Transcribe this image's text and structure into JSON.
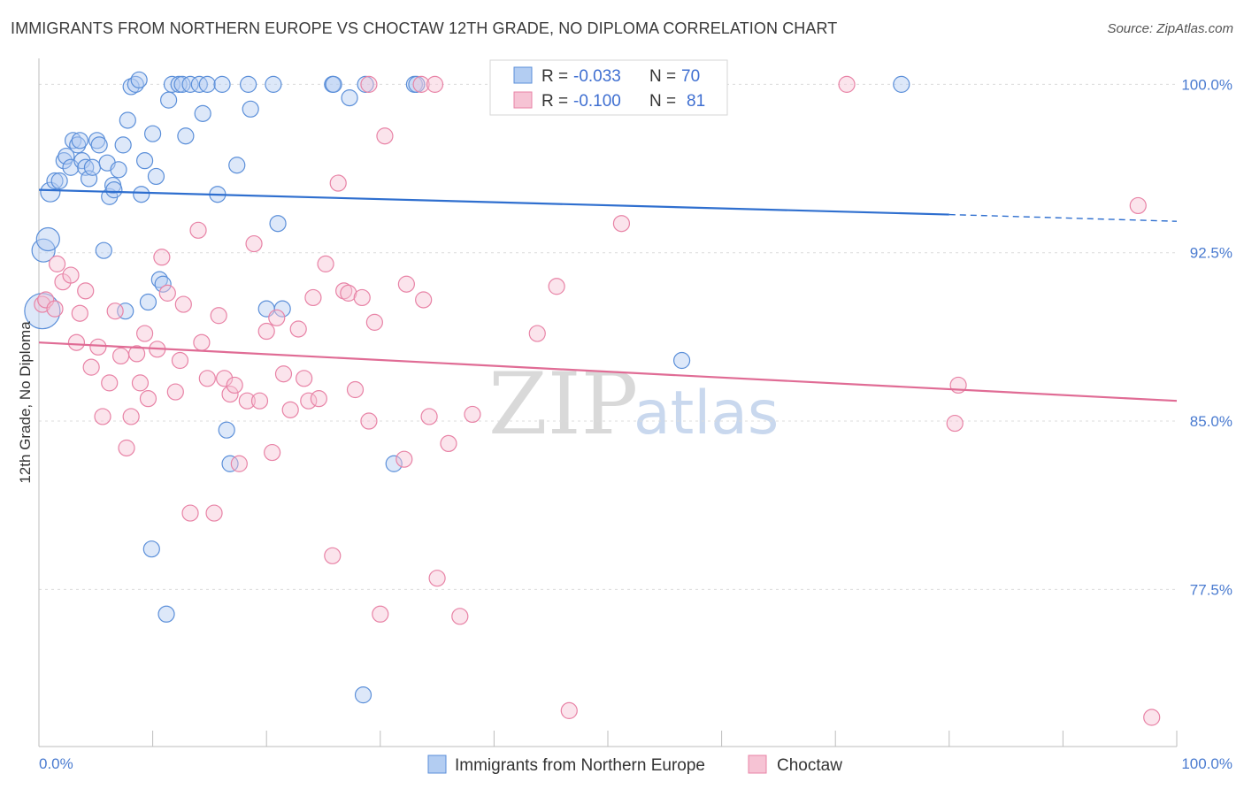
{
  "header": {
    "title": "IMMIGRANTS FROM NORTHERN EUROPE VS CHOCTAW 12TH GRADE, NO DIPLOMA CORRELATION CHART",
    "source": "Source: ZipAtlas.com"
  },
  "watermark": {
    "zip": "ZIP",
    "atlas": "atlas"
  },
  "colors": {
    "blue": "#5b8fd9",
    "blue_fill": "#b3cdf2",
    "blue_line": "#2f6fcf",
    "pink": "#e883a6",
    "pink_fill": "#f6c3d4",
    "pink_line": "#e06c95",
    "tick_text": "#4a7bd0"
  },
  "stats_box": {
    "rows": [
      {
        "r_label": "R =",
        "r_value": "-0.033",
        "n_label": "N =",
        "n_value": "70"
      },
      {
        "r_label": "R =",
        "r_value": "-0.100",
        "n_label": "N =",
        "n_value": "81"
      }
    ]
  },
  "chart_data": {
    "type": "scatter",
    "title": "IMMIGRANTS FROM NORTHERN EUROPE VS CHOCTAW 12TH GRADE, NO DIPLOMA CORRELATION CHART",
    "xlabel": "",
    "ylabel": "12th Grade, No Diploma",
    "xlim": [
      0,
      100
    ],
    "ylim": [
      70.5,
      101
    ],
    "x_ticks": [
      0,
      10,
      20,
      30,
      40,
      50,
      60,
      70,
      80,
      90,
      100
    ],
    "x_tick_labels": [
      {
        "value": 0,
        "label": "0.0%"
      },
      {
        "value": 100,
        "label": "100.0%"
      }
    ],
    "y_ticks": [
      {
        "value": 100,
        "label": "100.0%"
      },
      {
        "value": 92.5,
        "label": "92.5%"
      },
      {
        "value": 85,
        "label": "85.0%"
      },
      {
        "value": 77.5,
        "label": "77.5%"
      }
    ],
    "grid": true,
    "legend_position": "bottom-center",
    "series": [
      {
        "name": "Immigrants from Northern Europe",
        "color": "#5b8fd9",
        "trend": {
          "x": [
            0,
            80
          ],
          "y": [
            95.3,
            94.2
          ],
          "dash_to": [
            100,
            93.9
          ]
        },
        "points": [
          [
            0.3,
            89.9
          ],
          [
            0.4,
            92.6
          ],
          [
            0.8,
            93.1
          ],
          [
            1.0,
            95.2
          ],
          [
            1.4,
            95.7
          ],
          [
            1.8,
            95.7
          ],
          [
            2.2,
            96.6
          ],
          [
            2.4,
            96.8
          ],
          [
            2.8,
            96.3
          ],
          [
            3.0,
            97.5
          ],
          [
            3.4,
            97.3
          ],
          [
            3.6,
            97.5
          ],
          [
            3.8,
            96.6
          ],
          [
            4.1,
            96.3
          ],
          [
            4.4,
            95.8
          ],
          [
            4.7,
            96.3
          ],
          [
            5.1,
            97.5
          ],
          [
            5.3,
            97.3
          ],
          [
            5.7,
            92.6
          ],
          [
            6.0,
            96.5
          ],
          [
            6.2,
            95.0
          ],
          [
            6.5,
            95.5
          ],
          [
            6.6,
            95.3
          ],
          [
            7.0,
            96.2
          ],
          [
            7.4,
            97.3
          ],
          [
            7.6,
            89.9
          ],
          [
            7.8,
            98.4
          ],
          [
            8.1,
            99.9
          ],
          [
            8.5,
            100.0
          ],
          [
            8.8,
            100.2
          ],
          [
            9.0,
            95.1
          ],
          [
            9.3,
            96.6
          ],
          [
            9.6,
            90.3
          ],
          [
            9.9,
            79.3
          ],
          [
            10.0,
            97.8
          ],
          [
            10.3,
            95.9
          ],
          [
            10.6,
            91.3
          ],
          [
            10.9,
            91.1
          ],
          [
            11.2,
            76.4
          ],
          [
            11.4,
            99.3
          ],
          [
            11.7,
            100.0
          ],
          [
            12.3,
            100.0
          ],
          [
            12.6,
            100.0
          ],
          [
            12.9,
            97.7
          ],
          [
            13.3,
            100.0
          ],
          [
            14.1,
            100.0
          ],
          [
            14.4,
            98.7
          ],
          [
            14.8,
            100.0
          ],
          [
            15.7,
            95.1
          ],
          [
            16.1,
            100.0
          ],
          [
            16.5,
            84.6
          ],
          [
            16.8,
            83.1
          ],
          [
            17.4,
            96.4
          ],
          [
            18.4,
            100.0
          ],
          [
            18.6,
            98.9
          ],
          [
            20.6,
            100.0
          ],
          [
            20.0,
            90.0
          ],
          [
            21.0,
            93.8
          ],
          [
            21.4,
            90.0
          ],
          [
            25.8,
            100.0
          ],
          [
            25.9,
            100.0
          ],
          [
            27.3,
            99.4
          ],
          [
            28.5,
            72.8
          ],
          [
            28.7,
            100.0
          ],
          [
            31.2,
            83.1
          ],
          [
            33.0,
            100.0
          ],
          [
            33.2,
            100.0
          ],
          [
            56.3,
            100.0
          ],
          [
            56.5,
            87.7
          ],
          [
            75.8,
            100.0
          ]
        ]
      },
      {
        "name": "Choctaw",
        "color": "#e883a6",
        "trend": {
          "x": [
            0,
            100
          ],
          "y": [
            88.5,
            85.9
          ]
        },
        "points": [
          [
            0.3,
            90.2
          ],
          [
            0.6,
            90.4
          ],
          [
            1.4,
            90.0
          ],
          [
            1.6,
            92.0
          ],
          [
            2.1,
            91.2
          ],
          [
            2.8,
            91.5
          ],
          [
            3.3,
            88.5
          ],
          [
            3.6,
            89.8
          ],
          [
            4.1,
            90.8
          ],
          [
            4.6,
            87.4
          ],
          [
            5.2,
            88.3
          ],
          [
            5.6,
            85.2
          ],
          [
            6.2,
            86.7
          ],
          [
            6.7,
            89.9
          ],
          [
            7.2,
            87.9
          ],
          [
            7.7,
            83.8
          ],
          [
            8.1,
            85.2
          ],
          [
            8.6,
            88.0
          ],
          [
            8.9,
            86.7
          ],
          [
            9.3,
            88.9
          ],
          [
            9.6,
            86.0
          ],
          [
            10.4,
            88.2
          ],
          [
            10.8,
            92.3
          ],
          [
            11.3,
            90.7
          ],
          [
            12.0,
            86.3
          ],
          [
            12.4,
            87.7
          ],
          [
            12.7,
            90.2
          ],
          [
            13.3,
            80.9
          ],
          [
            14.0,
            93.5
          ],
          [
            14.3,
            88.5
          ],
          [
            14.8,
            86.9
          ],
          [
            15.4,
            80.9
          ],
          [
            15.8,
            89.7
          ],
          [
            16.3,
            86.9
          ],
          [
            16.8,
            86.2
          ],
          [
            17.2,
            86.6
          ],
          [
            17.6,
            83.1
          ],
          [
            18.3,
            85.9
          ],
          [
            18.9,
            92.9
          ],
          [
            19.4,
            85.9
          ],
          [
            20.0,
            89.0
          ],
          [
            20.5,
            83.6
          ],
          [
            20.9,
            89.6
          ],
          [
            21.5,
            87.1
          ],
          [
            22.1,
            85.5
          ],
          [
            22.8,
            89.1
          ],
          [
            23.3,
            86.9
          ],
          [
            23.7,
            85.9
          ],
          [
            24.1,
            90.5
          ],
          [
            24.6,
            86.0
          ],
          [
            25.2,
            92.0
          ],
          [
            25.8,
            79.0
          ],
          [
            26.3,
            95.6
          ],
          [
            26.8,
            90.8
          ],
          [
            27.2,
            90.7
          ],
          [
            27.8,
            86.4
          ],
          [
            28.4,
            90.5
          ],
          [
            29.0,
            85.0
          ],
          [
            29.5,
            89.4
          ],
          [
            30.0,
            76.4
          ],
          [
            30.4,
            97.7
          ],
          [
            32.1,
            83.3
          ],
          [
            32.3,
            91.1
          ],
          [
            33.8,
            90.4
          ],
          [
            34.3,
            85.2
          ],
          [
            33.6,
            100.0
          ],
          [
            35.0,
            78.0
          ],
          [
            36.0,
            84.0
          ],
          [
            37.0,
            76.3
          ],
          [
            38.1,
            85.3
          ],
          [
            29.0,
            100.0
          ],
          [
            34.8,
            100.0
          ],
          [
            43.8,
            88.9
          ],
          [
            45.5,
            91.0
          ],
          [
            46.6,
            72.1
          ],
          [
            51.2,
            93.8
          ],
          [
            71.0,
            100.0
          ],
          [
            80.5,
            84.9
          ],
          [
            80.8,
            86.6
          ],
          [
            96.6,
            94.6
          ],
          [
            97.8,
            71.8
          ]
        ]
      }
    ]
  },
  "legend": {
    "items": [
      {
        "label": "Immigrants from Northern Europe"
      },
      {
        "label": "Choctaw"
      }
    ]
  }
}
